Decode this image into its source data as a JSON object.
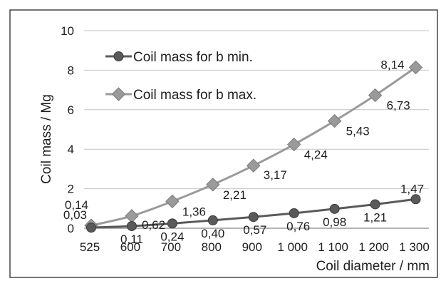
{
  "chart_data": {
    "type": "line",
    "xlabel": "Coil diameter / mm",
    "ylabel": "Coil mass / Mg",
    "ylim": [
      0,
      10
    ],
    "yticks": [
      "0",
      "2",
      "4",
      "6",
      "8",
      "10"
    ],
    "categories": [
      "525",
      "600",
      "700",
      "800",
      "900",
      "1 000",
      "1 100",
      "1 200",
      "1 300"
    ],
    "grid": true,
    "legend_position": "top-left",
    "series": [
      {
        "name": "Coil mass for b min.",
        "values": [
          0.03,
          0.11,
          0.24,
          0.4,
          0.57,
          0.76,
          0.98,
          1.21,
          1.47
        ],
        "labels": [
          "0,03",
          "0,11",
          "0,24",
          "0,40",
          "0,57",
          "0,76",
          "0,98",
          "1,21",
          "1,47"
        ],
        "marker": "circle",
        "color": "#5a5a5a"
      },
      {
        "name": "Coil mass for b max.",
        "values": [
          0.14,
          0.62,
          1.36,
          2.21,
          3.17,
          4.24,
          5.43,
          6.73,
          8.14
        ],
        "labels": [
          "0,14",
          "0,62",
          "1,36",
          "2,21",
          "3,17",
          "4,24",
          "5,43",
          "6,73",
          "8,14"
        ],
        "marker": "diamond",
        "color": "#9a9a9a"
      }
    ]
  }
}
